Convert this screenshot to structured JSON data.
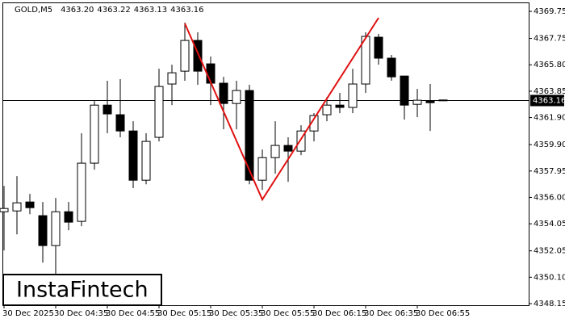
{
  "chart_data": {
    "type": "candlestick",
    "header": {
      "symbol": "GOLD,M5",
      "open": "4363.20",
      "high": "4363.22",
      "low": "4363.13",
      "close": "4363.16"
    },
    "logo": "InstaFintech",
    "categories": [
      "30 Dec 2025",
      null,
      null,
      null,
      "30 Dec 04:35",
      null,
      null,
      null,
      "30 Dec 04:55",
      null,
      null,
      null,
      "30 Dec 05:15",
      null,
      null,
      null,
      "30 Dec 05:35",
      null,
      null,
      null,
      "30 Dec 05:55",
      null,
      null,
      null,
      "30 Dec 06:15",
      null,
      null,
      null,
      "30 Dec 06:35",
      null,
      null,
      null,
      "30 Dec 06:55",
      null,
      null
    ],
    "open": [
      4354.94,
      4355.0,
      4355.66,
      4354.65,
      4352.44,
      4354.94,
      4354.23,
      4358.53,
      4362.82,
      4362.11,
      4360.91,
      4357.27,
      4360.44,
      4364.38,
      4365.33,
      4367.6,
      4365.87,
      4364.44,
      4362.94,
      4363.9,
      4357.27,
      4358.94,
      4359.84,
      4359.42,
      4360.91,
      4362.11,
      4362.82,
      4362.65,
      4364.38,
      4367.84,
      4366.29,
      4364.97,
      4362.88,
      4363.12,
      4363.2
    ],
    "high": [
      4356.85,
      4357.57,
      4356.26,
      4355.66,
      4355.96,
      4355.66,
      4360.74,
      4363.12,
      4364.62,
      4364.74,
      4361.63,
      4360.74,
      4365.51,
      4365.81,
      4368.91,
      4368.2,
      4366.41,
      4364.91,
      4364.62,
      4364.32,
      4359.54,
      4361.63,
      4360.44,
      4361.33,
      4362.23,
      4363.42,
      4363.72,
      4365.51,
      4368.2,
      4368.08,
      4366.53,
      4364.97,
      4364.02,
      4364.38,
      4363.22
    ],
    "low": [
      4352.08,
      4353.27,
      4354.76,
      4351.18,
      4350.29,
      4353.57,
      4353.87,
      4358.05,
      4360.74,
      4360.44,
      4356.68,
      4356.97,
      4360.14,
      4362.82,
      4364.62,
      4364.32,
      4362.82,
      4361.03,
      4361.03,
      4356.97,
      4356.56,
      4357.75,
      4357.15,
      4359.12,
      4360.14,
      4361.63,
      4362.23,
      4362.23,
      4363.72,
      4365.81,
      4364.62,
      4361.75,
      4361.93,
      4360.91,
      4363.13
    ],
    "close": [
      4355.18,
      4355.6,
      4355.24,
      4352.44,
      4354.94,
      4354.17,
      4358.53,
      4362.82,
      4362.17,
      4360.91,
      4357.27,
      4360.14,
      4364.2,
      4365.21,
      4367.6,
      4365.33,
      4364.44,
      4362.94,
      4363.9,
      4357.27,
      4358.94,
      4359.84,
      4359.42,
      4360.91,
      4362.05,
      4362.82,
      4362.65,
      4364.38,
      4367.9,
      4366.29,
      4364.91,
      4362.82,
      4363.18,
      4363.0,
      4363.16
    ],
    "up_color": "#ffffff",
    "down_color": "#000000",
    "pattern_line": {
      "color": "#e01010",
      "x": [
        14,
        20,
        29
      ],
      "values": [
        4368.85,
        4355.84,
        4369.27
      ]
    },
    "last_price": {
      "value": 4363.16,
      "label": "4363.16"
    },
    "ylim": [
      4348.03,
      4370.41
    ],
    "yticks": [
      4369.75,
      4367.75,
      {
        "value": 4365.8,
        "label": "4365.80"
      },
      4363.85,
      {
        "value": 4361.9,
        "label": "4361.90"
      },
      {
        "value": 4359.9,
        "label": "4359.90"
      },
      4357.95,
      {
        "value": 4356,
        "label": "4356.00"
      },
      4354.05,
      4352.05,
      {
        "value": 4350.1,
        "label": "4350.10"
      },
      4348.15
    ],
    "grid": false
  }
}
